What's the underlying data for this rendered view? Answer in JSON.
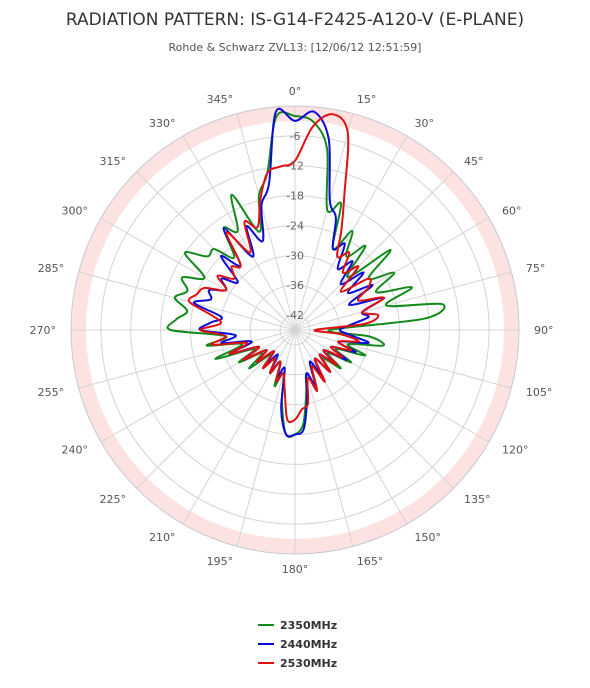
{
  "chart_data": {
    "type": "line",
    "subtype": "polar",
    "title": "RADIATION PATTERN: IS-G14-F2425-A120-V (E-PLANE)",
    "subtitle": "Rohde & Schwarz ZVL13: [12/06/12 12:51:59]",
    "angular_axis": {
      "direction": "clockwise",
      "zero_at": "top",
      "tick_labels": [
        "0°",
        "15°",
        "30°",
        "45°",
        "60°",
        "75°",
        "90°",
        "105°",
        "120°",
        "135°",
        "150°",
        "165°",
        "180°",
        "195°",
        "210°",
        "225°",
        "240°",
        "255°",
        "270°",
        "285°",
        "300°",
        "315°",
        "330°",
        "345°"
      ]
    },
    "radial_axis": {
      "range": [
        -45,
        0
      ],
      "ticks": [
        -42,
        -36,
        -30,
        -24,
        -18,
        -12,
        -6
      ],
      "tick_labels": [
        "-42",
        "-36",
        "-30",
        "-24",
        "-18",
        "-12",
        "-6"
      ],
      "plot_band": {
        "from": -3,
        "to": 0,
        "color": "#fde2e2"
      }
    },
    "grid": true,
    "legend": {
      "placement": "bottom"
    },
    "series": [
      {
        "name": "2350MHz",
        "color": "#138a1c",
        "points": [
          [
            0,
            -2
          ],
          [
            5,
            -3
          ],
          [
            10,
            -8
          ],
          [
            15,
            -20
          ],
          [
            20,
            -18
          ],
          [
            25,
            -27
          ],
          [
            30,
            -22
          ],
          [
            35,
            -27
          ],
          [
            40,
            -23
          ],
          [
            45,
            -30
          ],
          [
            50,
            -20
          ],
          [
            55,
            -27
          ],
          [
            60,
            -22
          ],
          [
            65,
            -27
          ],
          [
            70,
            -20
          ],
          [
            75,
            -26
          ],
          [
            80,
            -15
          ],
          [
            85,
            -19
          ],
          [
            90,
            -38
          ],
          [
            95,
            -30
          ],
          [
            100,
            -27
          ],
          [
            105,
            -34
          ],
          [
            110,
            -30
          ],
          [
            115,
            -36
          ],
          [
            120,
            -32
          ],
          [
            125,
            -37
          ],
          [
            130,
            -33
          ],
          [
            135,
            -37
          ],
          [
            140,
            -34
          ],
          [
            145,
            -38
          ],
          [
            150,
            -34
          ],
          [
            155,
            -37
          ],
          [
            160,
            -32
          ],
          [
            165,
            -36
          ],
          [
            170,
            -32
          ],
          [
            175,
            -26
          ],
          [
            180,
            -24
          ],
          [
            185,
            -24
          ],
          [
            190,
            -30
          ],
          [
            195,
            -36
          ],
          [
            200,
            -33
          ],
          [
            205,
            -38
          ],
          [
            210,
            -35
          ],
          [
            215,
            -38
          ],
          [
            220,
            -35
          ],
          [
            225,
            -38
          ],
          [
            230,
            -33
          ],
          [
            235,
            -37
          ],
          [
            240,
            -32
          ],
          [
            245,
            -36
          ],
          [
            250,
            -28
          ],
          [
            255,
            -34
          ],
          [
            260,
            -27
          ],
          [
            265,
            -31
          ],
          [
            270,
            -20
          ],
          [
            275,
            -21
          ],
          [
            280,
            -23
          ],
          [
            285,
            -20
          ],
          [
            290,
            -22
          ],
          [
            295,
            -20
          ],
          [
            300,
            -24
          ],
          [
            305,
            -18
          ],
          [
            310,
            -22
          ],
          [
            315,
            -22
          ],
          [
            320,
            -26
          ],
          [
            325,
            -20
          ],
          [
            330,
            -22
          ],
          [
            335,
            -15
          ],
          [
            340,
            -24
          ],
          [
            345,
            -17
          ],
          [
            350,
            -13
          ],
          [
            355,
            -2
          ]
        ]
      },
      {
        "name": "2440MHz",
        "color": "#0b0bd8",
        "points": [
          [
            0,
            -3
          ],
          [
            5,
            -1
          ],
          [
            10,
            -6
          ],
          [
            15,
            -18
          ],
          [
            20,
            -21
          ],
          [
            25,
            -27
          ],
          [
            30,
            -25
          ],
          [
            35,
            -30
          ],
          [
            40,
            -27
          ],
          [
            45,
            -32
          ],
          [
            50,
            -27
          ],
          [
            55,
            -32
          ],
          [
            60,
            -27
          ],
          [
            65,
            -33
          ],
          [
            70,
            -26
          ],
          [
            75,
            -31
          ],
          [
            80,
            -30
          ],
          [
            85,
            -34
          ],
          [
            90,
            -36
          ],
          [
            95,
            -34
          ],
          [
            100,
            -30
          ],
          [
            105,
            -36
          ],
          [
            110,
            -32
          ],
          [
            115,
            -37
          ],
          [
            120,
            -33
          ],
          [
            125,
            -38
          ],
          [
            130,
            -35
          ],
          [
            135,
            -38
          ],
          [
            140,
            -34
          ],
          [
            145,
            -38
          ],
          [
            150,
            -35
          ],
          [
            155,
            -38
          ],
          [
            160,
            -33
          ],
          [
            165,
            -36
          ],
          [
            170,
            -31
          ],
          [
            175,
            -25
          ],
          [
            180,
            -24
          ],
          [
            185,
            -24
          ],
          [
            190,
            -29
          ],
          [
            195,
            -37
          ],
          [
            200,
            -35
          ],
          [
            205,
            -38
          ],
          [
            210,
            -35
          ],
          [
            215,
            -39
          ],
          [
            220,
            -36
          ],
          [
            225,
            -39
          ],
          [
            230,
            -35
          ],
          [
            235,
            -38
          ],
          [
            240,
            -33
          ],
          [
            245,
            -37
          ],
          [
            250,
            -31
          ],
          [
            255,
            -36
          ],
          [
            260,
            -30
          ],
          [
            265,
            -33
          ],
          [
            270,
            -26
          ],
          [
            275,
            -28
          ],
          [
            280,
            -30
          ],
          [
            285,
            -24
          ],
          [
            290,
            -27
          ],
          [
            295,
            -26
          ],
          [
            300,
            -29
          ],
          [
            305,
            -27
          ],
          [
            310,
            -30
          ],
          [
            315,
            -24
          ],
          [
            320,
            -28
          ],
          [
            325,
            -20
          ],
          [
            330,
            -28
          ],
          [
            335,
            -22
          ],
          [
            340,
            -26
          ],
          [
            345,
            -19
          ],
          [
            350,
            -15
          ],
          [
            355,
            -1
          ]
        ]
      },
      {
        "name": "2530MHz",
        "color": "#e01010",
        "points": [
          [
            0,
            -11
          ],
          [
            5,
            -4
          ],
          [
            10,
            -1
          ],
          [
            15,
            -4
          ],
          [
            20,
            -16
          ],
          [
            25,
            -23
          ],
          [
            30,
            -28
          ],
          [
            35,
            -26
          ],
          [
            40,
            -30
          ],
          [
            45,
            -27
          ],
          [
            50,
            -33
          ],
          [
            55,
            -27
          ],
          [
            60,
            -28
          ],
          [
            65,
            -31
          ],
          [
            70,
            -26
          ],
          [
            75,
            -31
          ],
          [
            80,
            -28
          ],
          [
            85,
            -31
          ],
          [
            90,
            -41
          ],
          [
            95,
            -36
          ],
          [
            100,
            -32
          ],
          [
            105,
            -36
          ],
          [
            110,
            -33
          ],
          [
            115,
            -37
          ],
          [
            120,
            -34
          ],
          [
            125,
            -38
          ],
          [
            130,
            -34
          ],
          [
            135,
            -38
          ],
          [
            140,
            -34
          ],
          [
            145,
            -38
          ],
          [
            150,
            -33
          ],
          [
            155,
            -37
          ],
          [
            160,
            -32
          ],
          [
            165,
            -35
          ],
          [
            170,
            -30
          ],
          [
            175,
            -29
          ],
          [
            180,
            -27
          ],
          [
            185,
            -27
          ],
          [
            190,
            -33
          ],
          [
            195,
            -36
          ],
          [
            200,
            -34
          ],
          [
            205,
            -38
          ],
          [
            210,
            -35
          ],
          [
            215,
            -38
          ],
          [
            220,
            -35
          ],
          [
            225,
            -39
          ],
          [
            230,
            -35
          ],
          [
            235,
            -38
          ],
          [
            240,
            -33
          ],
          [
            245,
            -37
          ],
          [
            250,
            -31
          ],
          [
            255,
            -35
          ],
          [
            260,
            -28
          ],
          [
            265,
            -31
          ],
          [
            270,
            -26
          ],
          [
            275,
            -30
          ],
          [
            280,
            -28
          ],
          [
            285,
            -23
          ],
          [
            290,
            -24
          ],
          [
            295,
            -25
          ],
          [
            300,
            -29
          ],
          [
            305,
            -26
          ],
          [
            310,
            -29
          ],
          [
            315,
            -27
          ],
          [
            320,
            -28
          ],
          [
            325,
            -21
          ],
          [
            330,
            -27
          ],
          [
            335,
            -21
          ],
          [
            340,
            -23
          ],
          [
            345,
            -18
          ],
          [
            350,
            -13
          ],
          [
            355,
            -12
          ]
        ]
      }
    ]
  }
}
